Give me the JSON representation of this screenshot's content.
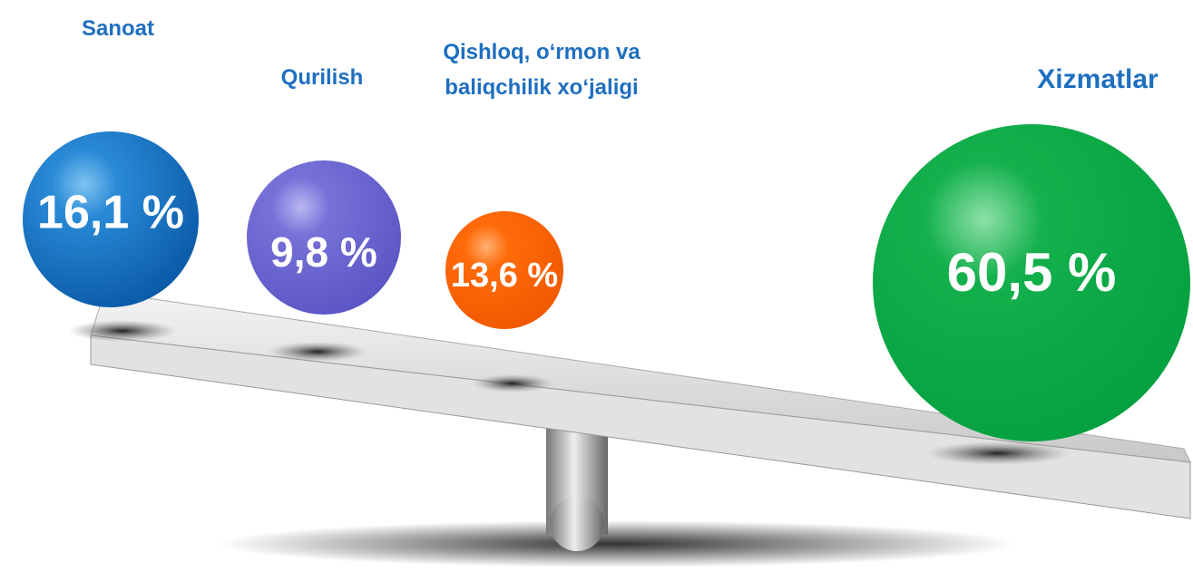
{
  "items": [
    {
      "label": "Sanoat",
      "value": "16,1 %"
    },
    {
      "label": "Qurilish",
      "value": "9,8 %"
    },
    {
      "label": "Qishloq, o‘rmon va baliqchilik xo‘jaligi",
      "value": "13,6 %"
    },
    {
      "label": "Xizmatlar",
      "value": "60,5 %"
    }
  ]
}
